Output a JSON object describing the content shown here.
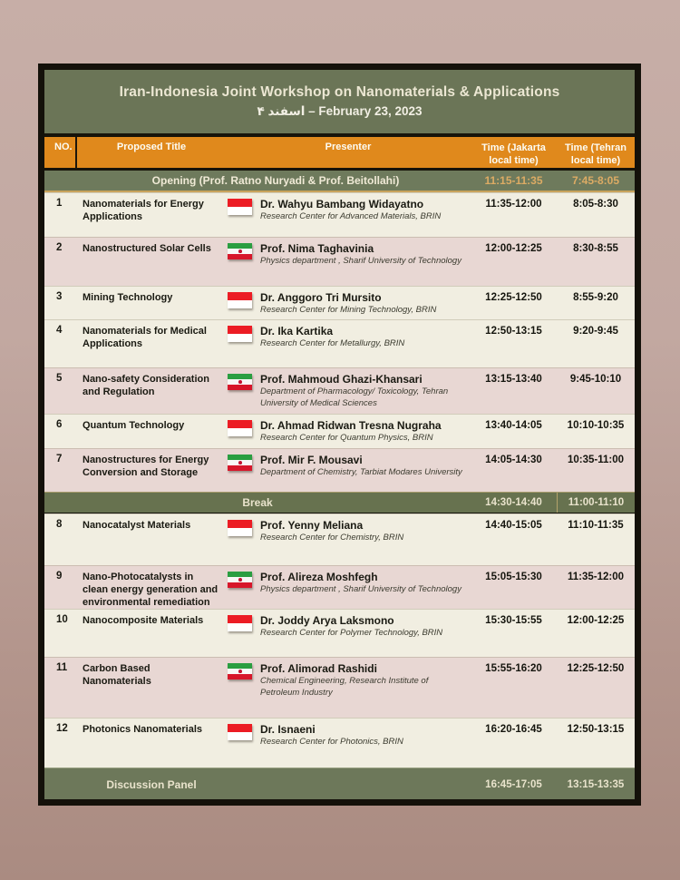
{
  "poster": {
    "title": "Iran-Indonesia Joint Workshop on Nanomaterials & Applications",
    "subtitle": "۴ اسفند – February 23, 2023"
  },
  "columns": {
    "no": "NO.",
    "proposed_title": "Proposed Title",
    "presenter": "Presenter",
    "time_jakarta": "Time (Jakarta local time)",
    "time_tehran": "Time (Tehran local time)"
  },
  "opening": {
    "label": "Opening (Prof. Ratno Nuryadi & Prof. Beitollahi)",
    "time_jakarta": "11:15-11:35",
    "time_tehran": "7:45-8:05"
  },
  "rows": [
    {
      "kind": "session",
      "no": "1",
      "title": "Nanomaterials for Energy Applications",
      "flag": "indonesia",
      "presenter": "Dr. Wahyu Bambang Widayatno",
      "affiliation": "Research Center for Advanced Materials, BRIN",
      "time_jakarta": "11:35-12:00",
      "time_tehran": "8:05-8:30"
    },
    {
      "kind": "session",
      "no": "2",
      "title": "Nanostructured Solar Cells",
      "flag": "iran",
      "presenter": "Prof. Nima Taghavinia",
      "affiliation": "Physics department , Sharif University of Technology",
      "time_jakarta": "12:00-12:25",
      "time_tehran": "8:30-8:55"
    },
    {
      "kind": "session",
      "no": "3",
      "title": "Mining Technology",
      "flag": "indonesia",
      "presenter": "Dr. Anggoro Tri Mursito",
      "affiliation": "Research Center for Mining Technology, BRIN",
      "time_jakarta": "12:25-12:50",
      "time_tehran": "8:55-9:20"
    },
    {
      "kind": "session",
      "no": "4",
      "title": "Nanomaterials for Medical Applications",
      "flag": "indonesia",
      "presenter": "Dr. Ika Kartika",
      "affiliation": "Research Center for Metallurgy, BRIN",
      "time_jakarta": "12:50-13:15",
      "time_tehran": "9:20-9:45"
    },
    {
      "kind": "session",
      "no": "5",
      "title": "Nano-safety Consideration and Regulation",
      "flag": "iran",
      "presenter": "Prof. Mahmoud Ghazi-Khansari",
      "affiliation": "Department of Pharmacology/ Toxicology, Tehran University of Medical Sciences",
      "time_jakarta": "13:15-13:40",
      "time_tehran": "9:45-10:10"
    },
    {
      "kind": "session",
      "no": "6",
      "title": "Quantum Technology",
      "flag": "indonesia",
      "presenter": "Dr. Ahmad Ridwan Tresna Nugraha",
      "affiliation": "Research Center for Quantum Physics, BRIN",
      "time_jakarta": "13:40-14:05",
      "time_tehran": "10:10-10:35"
    },
    {
      "kind": "session",
      "no": "7",
      "title": "Nanostructures for Energy Conversion and Storage",
      "flag": "iran",
      "presenter": "Prof. Mir F. Mousavi",
      "affiliation": "Department of Chemistry, Tarbiat Modares University",
      "time_jakarta": "14:05-14:30",
      "time_tehran": "10:35-11:00"
    },
    {
      "kind": "break",
      "label": "Break",
      "time_jakarta": "14:30-14:40",
      "time_tehran": "11:00-11:10"
    },
    {
      "kind": "session",
      "no": "8",
      "title": "Nanocatalyst Materials",
      "flag": "indonesia",
      "presenter": "Prof.  Yenny Meliana",
      "affiliation": "Research Center for Chemistry, BRIN",
      "time_jakarta": "14:40-15:05",
      "time_tehran": "11:10-11:35"
    },
    {
      "kind": "session",
      "no": "9",
      "title": "Nano-Photocatalysts in clean energy generation and environmental remediation",
      "flag": "iran",
      "presenter": "Prof. Alireza Moshfegh",
      "affiliation": "Physics department , Sharif University of Technology",
      "time_jakarta": "15:05-15:30",
      "time_tehran": "11:35-12:00"
    },
    {
      "kind": "session",
      "no": "10",
      "title": "Nanocomposite Materials",
      "flag": "indonesia",
      "presenter": "Dr. Joddy Arya Laksmono",
      "affiliation": "Research Center for Polymer Technology, BRIN",
      "time_jakarta": "15:30-15:55",
      "time_tehran": "12:00-12:25"
    },
    {
      "kind": "session",
      "no": "11",
      "title": "Carbon Based Nanomaterials",
      "flag": "iran",
      "presenter": "Prof. Alimorad Rashidi",
      "affiliation": "Chemical Engineering, Research Institute of Petroleum Industry",
      "time_jakarta": "15:55-16:20",
      "time_tehran": "12:25-12:50"
    },
    {
      "kind": "session",
      "no": "12",
      "title": "Photonics Nanomaterials",
      "flag": "indonesia",
      "presenter": "Dr. Isnaeni",
      "affiliation": "Research Center for Photonics, BRIN",
      "time_jakarta": "16:20-16:45",
      "time_tehran": "12:50-13:15"
    },
    {
      "kind": "panel",
      "label": "Discussion Panel",
      "time_jakarta": "16:45-17:05",
      "time_tehran": "13:15-13:35"
    }
  ],
  "colors": {
    "header_green": "#6b7557",
    "accent_orange": "#e0891c",
    "cream_row": "#f1eee1",
    "pink_row": "#e8d7d3",
    "gold_time": "#dcab64",
    "frame_black": "#14110a"
  }
}
